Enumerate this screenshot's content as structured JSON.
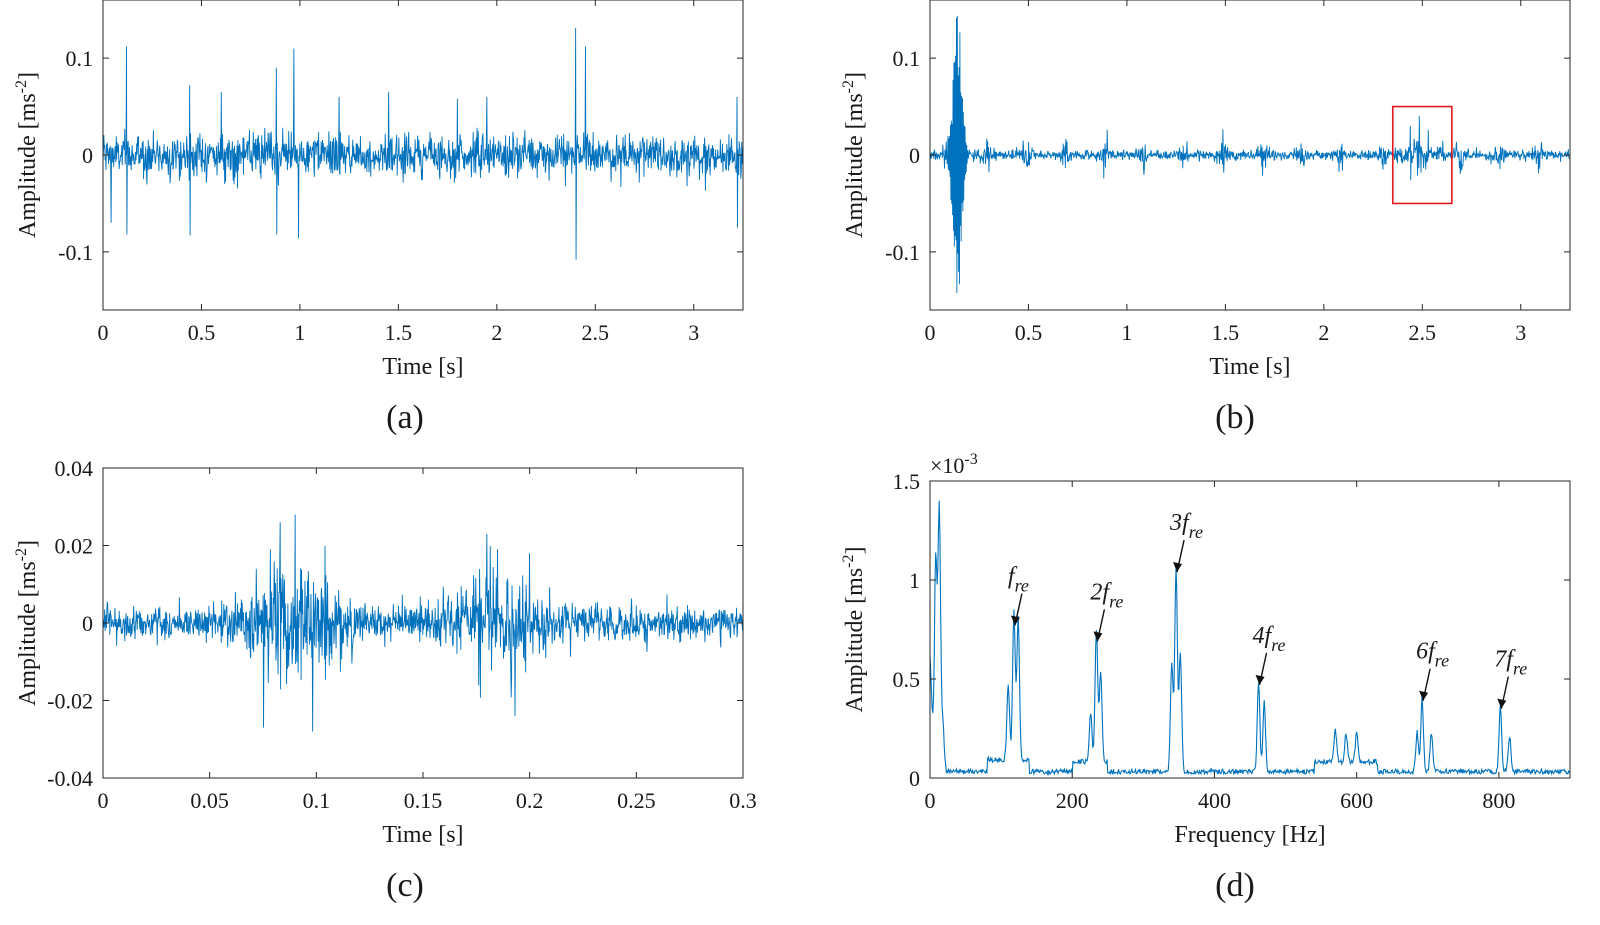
{
  "colors": {
    "signal": "#0072BD",
    "highlight_box": "#E31A1C",
    "axis": "#262626"
  },
  "chart_data": [
    {
      "type": "line",
      "panel_label": "(a)",
      "xlabel": "Time [s]",
      "ylabel": "Amplitude [ms",
      "ylabel_sup": "-2",
      "ylabel_end": "]",
      "xlim": [
        0,
        3.25
      ],
      "ylim": [
        -0.16,
        0.16
      ],
      "xticks": [
        0,
        0.5,
        1,
        1.5,
        2,
        2.5,
        3
      ],
      "xtick_labels": [
        "0",
        "0.5",
        "1",
        "1.5",
        "2",
        "2.5",
        "3"
      ],
      "yticks": [
        -0.1,
        0,
        0.1
      ],
      "ytick_labels": [
        "-0.1",
        "0",
        "0.1"
      ],
      "signal": {
        "kind": "noise",
        "noise_sd": 0.011,
        "burst_period": 0.0,
        "spikes": [
          {
            "x": 0.04,
            "y": -0.07
          },
          {
            "x": 0.12,
            "y": 0.112
          },
          {
            "x": 0.12,
            "y": -0.082
          },
          {
            "x": 0.44,
            "y": 0.072
          },
          {
            "x": 0.44,
            "y": -0.083
          },
          {
            "x": 0.6,
            "y": 0.065
          },
          {
            "x": 0.88,
            "y": 0.09
          },
          {
            "x": 0.88,
            "y": -0.082
          },
          {
            "x": 0.97,
            "y": 0.11
          },
          {
            "x": 0.99,
            "y": -0.086
          },
          {
            "x": 1.2,
            "y": 0.06
          },
          {
            "x": 1.45,
            "y": 0.065
          },
          {
            "x": 1.8,
            "y": 0.058
          },
          {
            "x": 1.95,
            "y": 0.06
          },
          {
            "x": 2.4,
            "y": 0.131
          },
          {
            "x": 2.4,
            "y": -0.108
          },
          {
            "x": 2.45,
            "y": 0.112
          },
          {
            "x": 3.22,
            "y": -0.075
          },
          {
            "x": 3.22,
            "y": 0.06
          }
        ]
      }
    },
    {
      "type": "line",
      "panel_label": "(b)",
      "xlabel": "Time [s]",
      "ylabel": "Amplitude [ms",
      "ylabel_sup": "-2",
      "ylabel_end": "]",
      "xlim": [
        0,
        3.25
      ],
      "ylim": [
        -0.16,
        0.16
      ],
      "xticks": [
        0,
        0.5,
        1,
        1.5,
        2,
        2.5,
        3
      ],
      "xtick_labels": [
        "0",
        "0.5",
        "1",
        "1.5",
        "2",
        "2.5",
        "3"
      ],
      "yticks": [
        -0.1,
        0,
        0.1
      ],
      "ytick_labels": [
        "-0.1",
        "0",
        "0.1"
      ],
      "highlight_box": {
        "x0": 2.35,
        "x1": 2.65,
        "y0": -0.05,
        "y1": 0.05
      },
      "signal": {
        "kind": "bursts",
        "noise_sd": 0.0025,
        "burst_period": 0.2,
        "burst_amp": 0.006,
        "big_event": {
          "x": 0.14,
          "ymax": 0.146,
          "ymin": -0.154
        },
        "spikes": [
          {
            "x": 0.9,
            "y": 0.026
          },
          {
            "x": 2.44,
            "y": 0.03
          },
          {
            "x": 2.53,
            "y": 0.026
          },
          {
            "x": 2.44,
            "y": -0.026
          }
        ]
      }
    },
    {
      "type": "line",
      "panel_label": "(c)",
      "xlabel": "Time [s]",
      "ylabel": "Amplitude [ms",
      "ylabel_sup": "-2",
      "ylabel_end": "]",
      "xlim": [
        0,
        0.3
      ],
      "ylim": [
        -0.04,
        0.04
      ],
      "xticks": [
        0,
        0.05,
        0.1,
        0.15,
        0.2,
        0.25,
        0.3
      ],
      "xtick_labels": [
        "0",
        "0.05",
        "0.1",
        "0.15",
        "0.2",
        "0.25",
        "0.3"
      ],
      "yticks": [
        -0.04,
        -0.02,
        0,
        0.02,
        0.04
      ],
      "ytick_labels": [
        "-0.04",
        "-0.02",
        "0",
        "0.02",
        "0.04"
      ],
      "signal": {
        "kind": "two_bursts",
        "noise_sd": 0.0022,
        "bursts": [
          {
            "center": 0.09,
            "width": 0.022,
            "amp": 0.006
          },
          {
            "center": 0.185,
            "width": 0.022,
            "amp": 0.005
          }
        ],
        "spikes": [
          {
            "x": 0.09,
            "y": 0.028
          },
          {
            "x": 0.098,
            "y": -0.028
          },
          {
            "x": 0.075,
            "y": -0.027
          },
          {
            "x": 0.083,
            "y": 0.026
          },
          {
            "x": 0.18,
            "y": 0.023
          },
          {
            "x": 0.193,
            "y": -0.024
          },
          {
            "x": 0.2,
            "y": 0.018
          }
        ]
      }
    },
    {
      "type": "line",
      "panel_label": "(d)",
      "xlabel": "Frequency [Hz]",
      "ylabel": "Amplitude [ms",
      "ylabel_sup": "-2",
      "ylabel_end": "]",
      "scale_note": "×10",
      "scale_note_sup": "-3",
      "xlim": [
        0,
        900
      ],
      "ylim": [
        0,
        1.5
      ],
      "xticks": [
        0,
        200,
        400,
        600,
        800
      ],
      "xtick_labels": [
        "0",
        "200",
        "400",
        "600",
        "800"
      ],
      "yticks": [
        0,
        0.5,
        1,
        1.5
      ],
      "ytick_labels": [
        "0",
        "0.5",
        "1",
        "1.5"
      ],
      "peaks": [
        {
          "f": 8,
          "a": 1.08
        },
        {
          "f": 13,
          "a": 1.33
        },
        {
          "f": 18,
          "a": 0.25
        },
        {
          "f": 110,
          "a": 0.38
        },
        {
          "f": 118,
          "a": 0.75
        },
        {
          "f": 124,
          "a": 0.72
        },
        {
          "f": 226,
          "a": 0.25
        },
        {
          "f": 234,
          "a": 0.67
        },
        {
          "f": 240,
          "a": 0.45
        },
        {
          "f": 340,
          "a": 0.55
        },
        {
          "f": 346,
          "a": 1.02
        },
        {
          "f": 352,
          "a": 0.6
        },
        {
          "f": 462,
          "a": 0.45
        },
        {
          "f": 470,
          "a": 0.35
        },
        {
          "f": 570,
          "a": 0.16
        },
        {
          "f": 585,
          "a": 0.14
        },
        {
          "f": 600,
          "a": 0.15
        },
        {
          "f": 685,
          "a": 0.2
        },
        {
          "f": 692,
          "a": 0.37
        },
        {
          "f": 705,
          "a": 0.2
        },
        {
          "f": 802,
          "a": 0.33
        },
        {
          "f": 815,
          "a": 0.18
        }
      ],
      "annotations": [
        {
          "label": "f",
          "sub": "re",
          "f": 118,
          "a": 0.75
        },
        {
          "label": "2f",
          "sub": "re",
          "f": 234,
          "a": 0.67
        },
        {
          "label": "3f",
          "sub": "re",
          "f": 346,
          "a": 1.02
        },
        {
          "label": "4f",
          "sub": "re",
          "f": 462,
          "a": 0.45
        },
        {
          "label": "6f",
          "sub": "re",
          "f": 692,
          "a": 0.37
        },
        {
          "label": "7f",
          "sub": "re",
          "f": 802,
          "a": 0.33
        }
      ]
    }
  ]
}
